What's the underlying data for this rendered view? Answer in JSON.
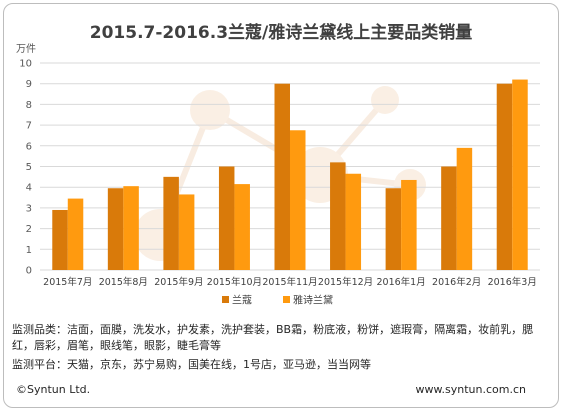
{
  "chart_data": {
    "type": "bar",
    "title": "2015.7-2016.3兰蔻/雅诗兰黛线上主要品类销量",
    "ylabel": "万件",
    "ylim": [
      0,
      10
    ],
    "yticks": [
      0,
      1,
      2,
      3,
      4,
      5,
      6,
      7,
      8,
      9,
      10
    ],
    "categories": [
      "2015年7月",
      "2015年8月",
      "2015年9月",
      "2015年10月",
      "2015年11月",
      "2015年12月",
      "2016年1月",
      "2016年2月",
      "2016年3月"
    ],
    "series": [
      {
        "name": "兰蔻",
        "color": "#D97A0A",
        "values": [
          2.9,
          3.95,
          4.5,
          5.0,
          9.0,
          5.2,
          3.95,
          5.0,
          9.0
        ]
      },
      {
        "name": "雅诗兰黛",
        "color": "#FF9A0F",
        "values": [
          3.45,
          4.05,
          3.65,
          4.15,
          6.75,
          4.65,
          4.35,
          5.9,
          9.2
        ]
      }
    ],
    "grid": true,
    "legend": "bottom"
  },
  "notes": {
    "categories_label": "监测品类：洁面，面膜，洗发水，护发素，洗护套装，BB霜，粉底液，粉饼，遮瑕膏，隔离霜，妆前乳，腮红，唇彩，眉笔，眼线笔，眼影，睫毛膏等",
    "platforms_label": "监测平台：天猫，京东，苏宁易购，国美在线，1号店，亚马逊，当当网等"
  },
  "footer": {
    "copyright": "©Syntun Ltd.",
    "website": "www.syntun.com.cn"
  }
}
